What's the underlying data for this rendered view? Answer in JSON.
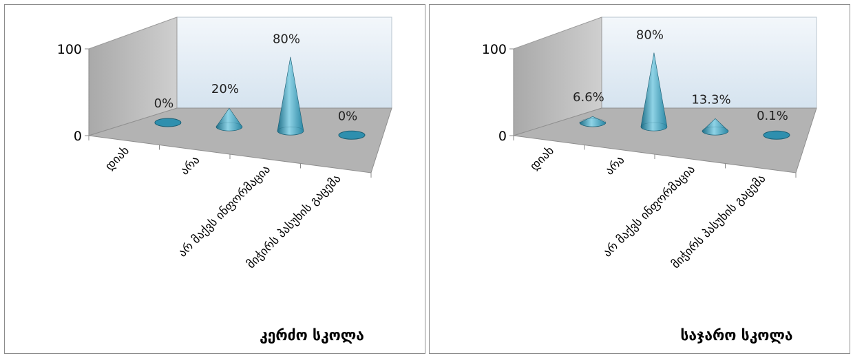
{
  "chart_data": [
    {
      "type": "bar",
      "shape": "3d-cone",
      "title": "კერძო სკოლა",
      "categories": [
        "დიახ",
        "არა",
        "არ მაქვს ინფორმაცია",
        "მიჭირს პასუხის გაცემა"
      ],
      "values": [
        0,
        20,
        80,
        0
      ],
      "data_labels": [
        "0%",
        "20%",
        "80%",
        "0%"
      ],
      "yticks": [
        "100",
        "0"
      ],
      "ylim": [
        0,
        100
      ],
      "grid": false,
      "legend": "none",
      "color": "#2e8fae"
    },
    {
      "type": "bar",
      "shape": "3d-cone",
      "title": "საჯარო სკოლა",
      "categories": [
        "დიახ",
        "არა",
        "არ მაქვს ინფორმაცია",
        "მიჭირს პასუხის გაცემა"
      ],
      "values": [
        6.6,
        80,
        13.3,
        0.1
      ],
      "data_labels": [
        "6.6%",
        "80%",
        "13.3%",
        "0.1%"
      ],
      "yticks": [
        "100",
        "0"
      ],
      "ylim": [
        0,
        100
      ],
      "grid": false,
      "legend": "none",
      "color": "#2e8fae"
    }
  ]
}
